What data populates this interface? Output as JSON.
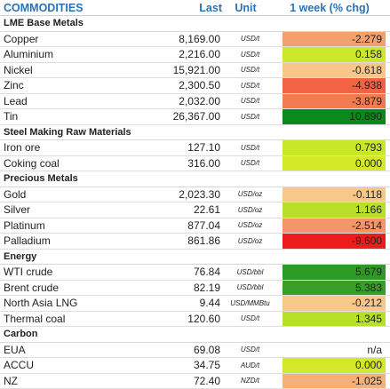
{
  "header": {
    "commodities": "COMMODITIES",
    "last": "Last",
    "unit": "Unit",
    "change": "1 week (% chg)"
  },
  "groups": [
    {
      "title": "LME Base Metals",
      "rows": [
        {
          "name": "Copper",
          "last": "8,169.00",
          "unit": "USD/t",
          "chg": "-2.279",
          "color": "#f4a06c"
        },
        {
          "name": "Aluminium",
          "last": "2,216.00",
          "unit": "USD/t",
          "chg": "0.158",
          "color": "#cde82b"
        },
        {
          "name": "Nickel",
          "last": "15,921.00",
          "unit": "USD/t",
          "chg": "-0.618",
          "color": "#f8c68a"
        },
        {
          "name": "Zinc",
          "last": "2,300.50",
          "unit": "USD/t",
          "chg": "-4.938",
          "color": "#f46244"
        },
        {
          "name": "Lead",
          "last": "2,032.00",
          "unit": "USD/t",
          "chg": "-3.879",
          "color": "#f47a50"
        },
        {
          "name": "Tin",
          "last": "26,367.00",
          "unit": "USD/t",
          "chg": "10.890",
          "color": "#0a8a1a"
        }
      ]
    },
    {
      "title": "Steel Making Raw Materials",
      "rows": [
        {
          "name": "Iron ore",
          "last": "127.10",
          "unit": "USD/t",
          "chg": "0.793",
          "color": "#c8e62a"
        },
        {
          "name": "Coking coal",
          "last": "316.00",
          "unit": "USD/t",
          "chg": "0.000",
          "color": "#d4e82a"
        }
      ]
    },
    {
      "title": "Precious Metals",
      "rows": [
        {
          "name": "Gold",
          "last": "2,023.30",
          "unit": "USD/oz",
          "chg": "-0.118",
          "color": "#f8c888"
        },
        {
          "name": "Silver",
          "last": "22.61",
          "unit": "USD/oz",
          "chg": "1.166",
          "color": "#b8e02a"
        },
        {
          "name": "Platinum",
          "last": "877.04",
          "unit": "USD/oz",
          "chg": "-2.514",
          "color": "#f4966a"
        },
        {
          "name": "Palladium",
          "last": "861.86",
          "unit": "USD/oz",
          "chg": "-9.600",
          "color": "#ee1c1c"
        }
      ]
    },
    {
      "title": "Energy",
      "rows": [
        {
          "name": "WTI crude",
          "last": "76.84",
          "unit": "USD/bbl",
          "chg": "5.679",
          "color": "#2e9a26"
        },
        {
          "name": "Brent crude",
          "last": "82.19",
          "unit": "USD/bbl",
          "chg": "5.383",
          "color": "#389e28"
        },
        {
          "name": "North Asia LNG",
          "last": "9.44",
          "unit": "USD/MMBtu",
          "chg": "-0.212",
          "color": "#f8c88a"
        },
        {
          "name": "Thermal coal",
          "last": "120.60",
          "unit": "USD/t",
          "chg": "1.345",
          "color": "#b6e02a"
        }
      ]
    },
    {
      "title": "Carbon",
      "rows": [
        {
          "name": "EUA",
          "last": "69.08",
          "unit": "USD/t",
          "chg": "n/a",
          "color": "#ffffff"
        },
        {
          "name": "ACCU",
          "last": "34.75",
          "unit": "AUD/t",
          "chg": "0.000",
          "color": "#d4e82a"
        },
        {
          "name": "NZ",
          "last": "72.40",
          "unit": "NZD/t",
          "chg": "-1.025",
          "color": "#f6b07a"
        }
      ]
    }
  ]
}
